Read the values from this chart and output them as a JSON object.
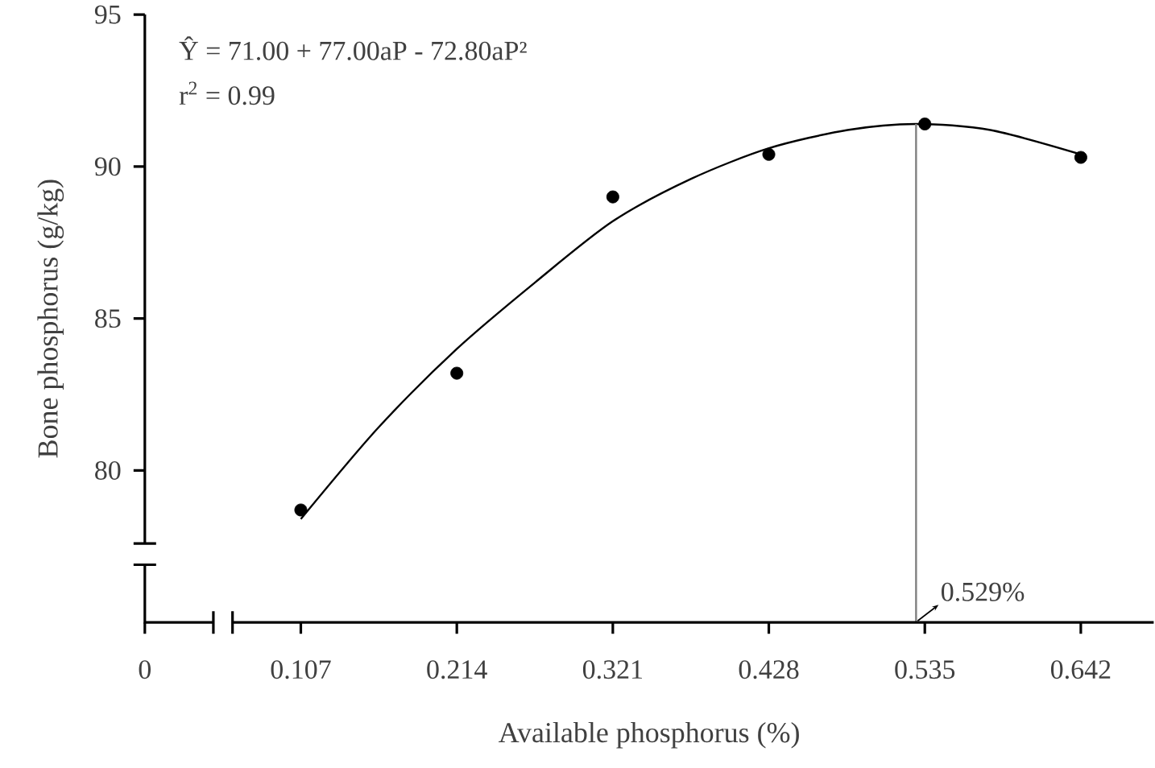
{
  "chart_data": {
    "type": "scatter",
    "xlabel": "Available phosphorus (%)",
    "ylabel": "Bone phosphorus (g/kg)",
    "xlim": [
      0,
      0.692
    ],
    "xticks": [
      0,
      0.107,
      0.214,
      0.321,
      0.428,
      0.535,
      0.642
    ],
    "ylim": [
      75,
      95
    ],
    "yticks": [
      80,
      85,
      90,
      95
    ],
    "annotations": [
      "Ŷ = 71.00 + 77.00aP - 72.80aP²",
      "r$^{2}$ = 0.99"
    ],
    "ref_lines": [
      {
        "axis": "x",
        "value": 0.529,
        "label": "0.529%",
        "color": "#808080"
      }
    ],
    "series": [
      {
        "color": "#000000",
        "marker": "circle",
        "x": [
          0.107,
          0.214,
          0.321,
          0.428,
          0.535,
          0.642
        ],
        "values": [
          78.7,
          83.2,
          89.0,
          90.4,
          91.4,
          90.3
        ]
      },
      {
        "type": "line",
        "color": "#000000",
        "marker": "none",
        "x": [
          0.107,
          0.16,
          0.214,
          0.268,
          0.321,
          0.375,
          0.428,
          0.482,
          0.529,
          0.58,
          0.642
        ],
        "values": [
          78.4,
          81.4,
          84.0,
          86.2,
          88.2,
          89.6,
          90.6,
          91.2,
          91.4,
          91.2,
          90.4
        ]
      }
    ]
  }
}
